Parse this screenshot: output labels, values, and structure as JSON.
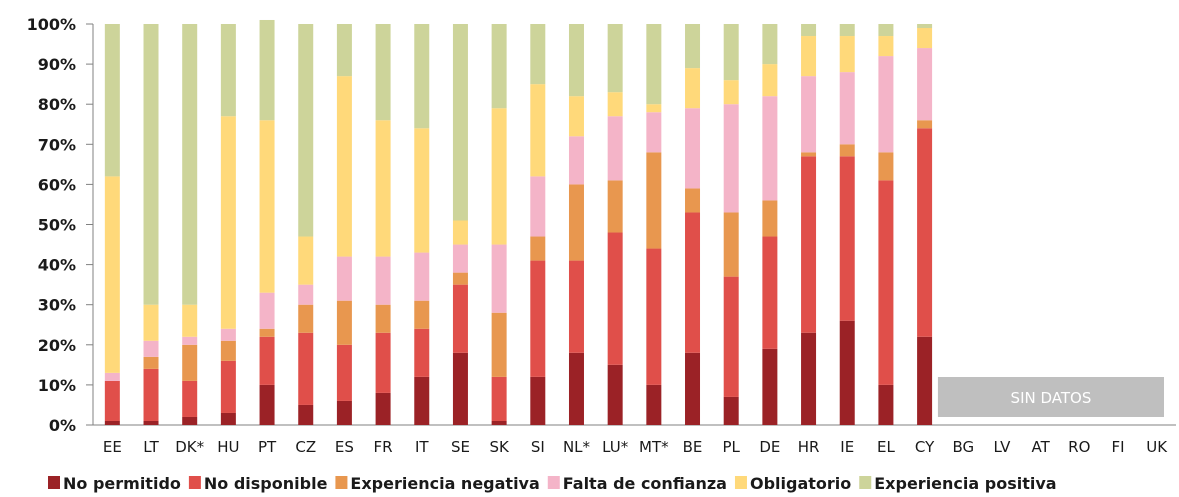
{
  "chart_data": {
    "type": "bar",
    "stacked": true,
    "ylim": [
      0,
      100
    ],
    "yticks": [
      "0%",
      "10%",
      "20%",
      "30%",
      "40%",
      "50%",
      "60%",
      "70%",
      "80%",
      "90%",
      "100%"
    ],
    "categories": [
      "EE",
      "LT",
      "DK*",
      "HU",
      "PT",
      "CZ",
      "ES",
      "FR",
      "IT",
      "SE",
      "SK",
      "SI",
      "NL*",
      "LU*",
      "MT*",
      "BE",
      "PL",
      "DE",
      "HR",
      "IE",
      "EL",
      "CY",
      "BG",
      "LV",
      "AT",
      "RO",
      "FI",
      "UK"
    ],
    "series": [
      {
        "name": "No permitido",
        "color": "#9b2226",
        "values": [
          1,
          1,
          2,
          3,
          10,
          5,
          6,
          8,
          12,
          18,
          1,
          12,
          18,
          15,
          10,
          18,
          7,
          19,
          23,
          26,
          10,
          22,
          null,
          null,
          null,
          null,
          null,
          null
        ]
      },
      {
        "name": "No disponible",
        "color": "#e04f4a",
        "values": [
          10,
          13,
          9,
          13,
          12,
          18,
          14,
          15,
          12,
          17,
          11,
          29,
          23,
          33,
          34,
          35,
          30,
          28,
          44,
          41,
          51,
          52,
          null,
          null,
          null,
          null,
          null,
          null
        ]
      },
      {
        "name": "Experiencia negativa",
        "color": "#e8974f",
        "values": [
          0,
          3,
          9,
          5,
          2,
          7,
          11,
          7,
          7,
          3,
          16,
          6,
          19,
          13,
          24,
          6,
          16,
          9,
          1,
          3,
          7,
          2,
          null,
          null,
          null,
          null,
          null,
          null
        ]
      },
      {
        "name": "Falta de confianza",
        "color": "#f4b4c8",
        "values": [
          2,
          4,
          2,
          3,
          9,
          5,
          11,
          12,
          12,
          7,
          17,
          15,
          12,
          16,
          10,
          20,
          27,
          26,
          19,
          18,
          24,
          18,
          null,
          null,
          null,
          null,
          null,
          null
        ]
      },
      {
        "name": "Obligatorio",
        "color": "#ffd97a",
        "values": [
          49,
          9,
          8,
          53,
          43,
          12,
          45,
          34,
          31,
          6,
          34,
          23,
          10,
          6,
          2,
          10,
          6,
          8,
          10,
          9,
          5,
          5,
          null,
          null,
          null,
          null,
          null,
          null
        ]
      },
      {
        "name": "Experiencia positiva",
        "color": "#cdd49a",
        "values": [
          38,
          70,
          70,
          23,
          25,
          53,
          13,
          24,
          26,
          49,
          21,
          15,
          18,
          17,
          20,
          11,
          14,
          10,
          3,
          3,
          3,
          1,
          null,
          null,
          null,
          null,
          null,
          null
        ]
      }
    ],
    "no_data_label": "SIN DATOS",
    "no_data_categories": [
      "BG",
      "LV",
      "AT",
      "RO",
      "FI",
      "UK"
    ],
    "no_data_color": "#bfbfbf",
    "grid": false,
    "legend_position": "bottom"
  }
}
